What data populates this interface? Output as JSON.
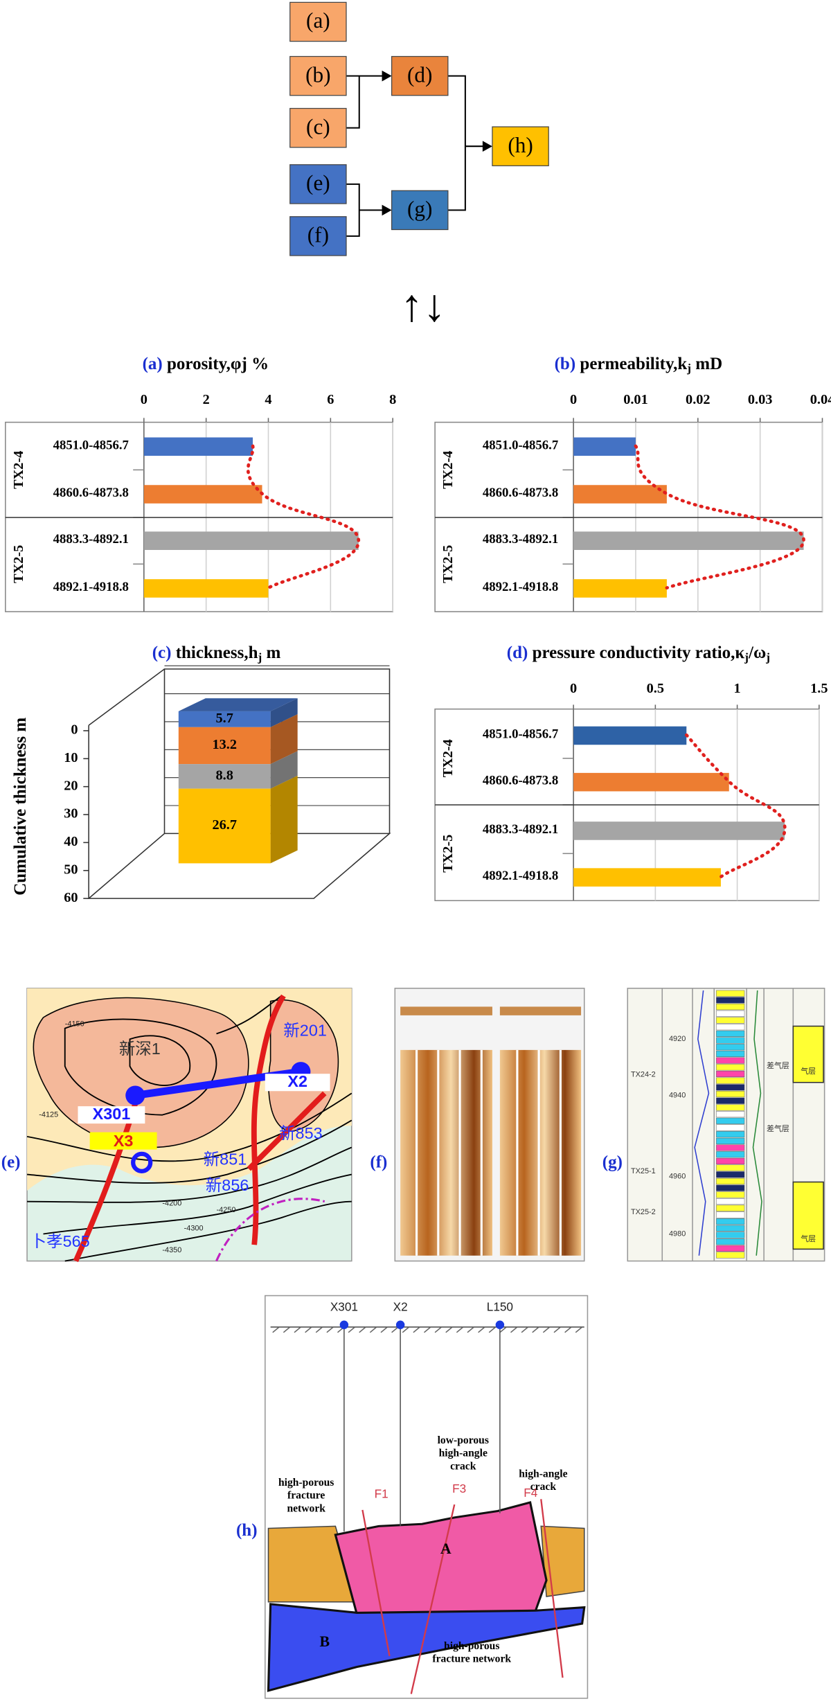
{
  "diagram": {
    "nodes": [
      {
        "label": "(a)",
        "color": "#f8a66a"
      },
      {
        "label": "(b)",
        "color": "#f8a66a"
      },
      {
        "label": "(c)",
        "color": "#f8a66a"
      },
      {
        "label": "(d)",
        "color": "#e9843c"
      },
      {
        "label": "(e)",
        "color": "#4472c4"
      },
      {
        "label": "(f)",
        "color": "#4472c4"
      },
      {
        "label": "(g)",
        "color": "#3a7ab8"
      },
      {
        "label": "(h)",
        "color": "#ffc000"
      }
    ],
    "arrows": "↑↓"
  },
  "chart_data": [
    {
      "type": "bar",
      "horizontal": true,
      "label": "(a)",
      "title": [
        "porosity,φj %"
      ],
      "categories": [
        "4851.0-4856.7",
        "4860.6-4873.8",
        "4883.3-4892.1",
        "4892.1-4918.8"
      ],
      "groups": [
        {
          "name": "TX2-4",
          "size": 2
        },
        {
          "name": "TX2-5",
          "size": 2
        }
      ],
      "values": [
        3.5,
        3.8,
        6.9,
        4.0
      ],
      "colors": [
        "#4472c4",
        "#ed7d31",
        "#a5a5a5",
        "#ffc000"
      ],
      "xlim": [
        0,
        8
      ],
      "xticks": [
        0,
        2,
        4,
        6,
        8
      ],
      "grid": true,
      "trend_color": "#e0201e"
    },
    {
      "type": "bar",
      "horizontal": true,
      "label": "(b)",
      "title": [
        "permeability,k",
        "j",
        " mD"
      ],
      "categories": [
        "4851.0-4856.7",
        "4860.6-4873.8",
        "4883.3-4892.1",
        "4892.1-4918.8"
      ],
      "groups": [
        {
          "name": "TX2-4",
          "size": 2
        },
        {
          "name": "TX2-5",
          "size": 2
        }
      ],
      "values": [
        0.01,
        0.015,
        0.037,
        0.015
      ],
      "colors": [
        "#4472c4",
        "#ed7d31",
        "#a5a5a5",
        "#ffc000"
      ],
      "xlim": [
        0,
        0.04
      ],
      "xticks": [
        0,
        0.01,
        0.02,
        0.03,
        0.04
      ],
      "grid": true,
      "trend_color": "#e0201e"
    },
    {
      "type": "bar",
      "stacked": true,
      "three_d": true,
      "label": "(c)",
      "title": [
        "thickness,h",
        "j",
        " m"
      ],
      "ylabel": "Cumulative thickness m",
      "values": [
        5.7,
        13.2,
        8.8,
        26.7
      ],
      "colors": [
        "#4472c4",
        "#ed7d31",
        "#a5a5a5",
        "#ffc000"
      ],
      "ylim": [
        0,
        60
      ],
      "yticks": [
        0,
        10,
        20,
        30,
        40,
        50,
        60
      ],
      "inverted": true
    },
    {
      "type": "bar",
      "horizontal": true,
      "label": "(d)",
      "title": [
        "pressure conductivity ratio,κ",
        "j",
        "/ω",
        "j"
      ],
      "categories": [
        "4851.0-4856.7",
        "4860.6-4873.8",
        "4883.3-4892.1",
        "4892.1-4918.8"
      ],
      "groups": [
        {
          "name": "TX2-4",
          "size": 2
        },
        {
          "name": "TX2-5",
          "size": 2
        }
      ],
      "values": [
        0.69,
        0.95,
        1.29,
        0.9
      ],
      "colors": [
        "#2e62a6",
        "#ed7d31",
        "#a5a5a5",
        "#ffc000"
      ],
      "xlim": [
        0,
        1.5
      ],
      "xticks": [
        0,
        0.5,
        1,
        1.5
      ],
      "grid": true,
      "trend_color": "#e0201e"
    }
  ],
  "panels": {
    "e": {
      "label": "(e)",
      "wells": [
        "新201",
        "X2",
        "新853",
        "新深1",
        "X301",
        "新851",
        "新856",
        "X3",
        "卜孝565"
      ],
      "contours": [
        "-4150",
        "-4200",
        "-4250",
        "-4300",
        "-4350",
        "-4125"
      ]
    },
    "f": {
      "label": "(f)"
    },
    "g": {
      "label": "(g)",
      "depths": [
        "4920",
        "4940",
        "4960",
        "4980"
      ],
      "layers": [
        "TX24-2",
        "TX25-1",
        "TX25-2"
      ],
      "zones": [
        "气层",
        "差气层",
        "差气层",
        "气层"
      ]
    },
    "h": {
      "label": "(h)",
      "wells": [
        "X301",
        "X2",
        "L150"
      ],
      "faults": [
        "F1",
        "F3",
        "F4"
      ],
      "blocks": [
        "A",
        "B"
      ],
      "notes": [
        "high-porous fracture network",
        "low-porous high-angle crack",
        "high-angle crack",
        "high-porous fracture network"
      ]
    }
  }
}
